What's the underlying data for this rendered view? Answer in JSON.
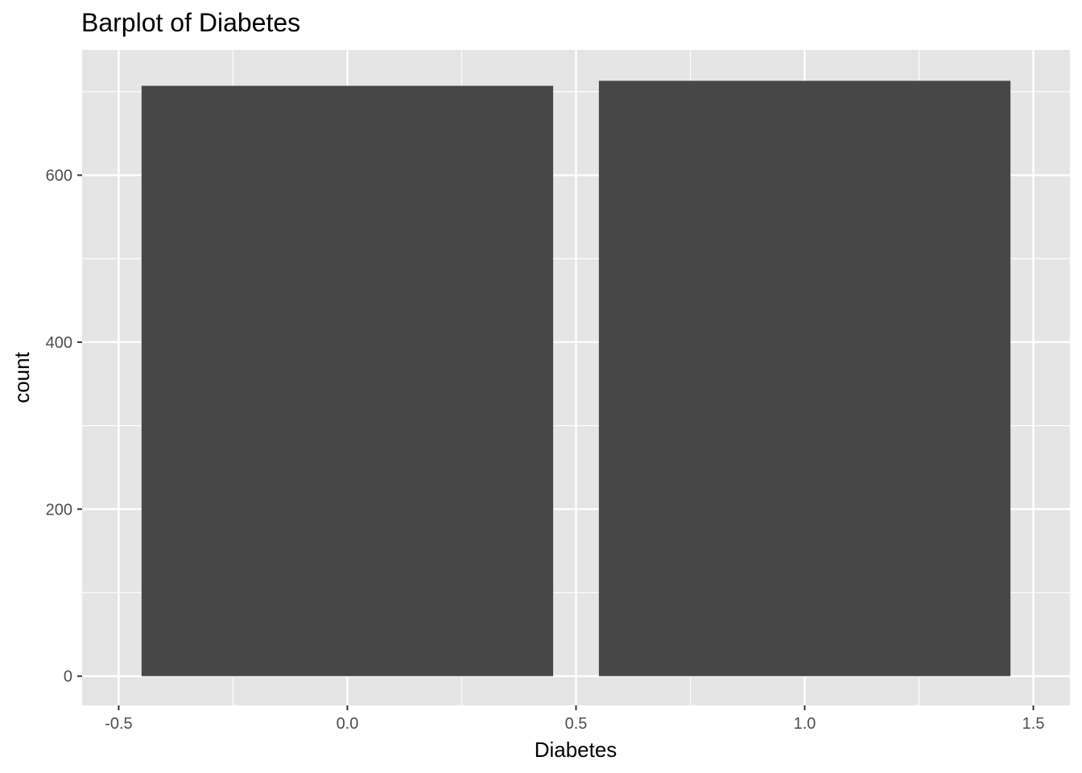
{
  "chart_data": {
    "type": "bar",
    "title": "Barplot of Diabetes",
    "xlabel": "Diabetes",
    "ylabel": "count",
    "x": [
      0,
      1
    ],
    "values": [
      707,
      713
    ],
    "bar_width": 0.9,
    "xlim": [
      -0.58,
      1.58
    ],
    "ylim": [
      -35,
      750
    ],
    "x_ticks": [
      -0.5,
      0.0,
      0.5,
      1.0,
      1.5
    ],
    "x_tick_labels": [
      "-0.5",
      "0.0",
      "0.5",
      "1.0",
      "1.5"
    ],
    "y_ticks": [
      0,
      200,
      400,
      600
    ],
    "y_tick_labels": [
      "0",
      "200",
      "400",
      "600"
    ],
    "grid": true,
    "colors": {
      "panel": "#e5e5e5",
      "grid": "#ffffff",
      "bar": "#474747",
      "tick_text": "#4d4d4d",
      "tick_mark": "#333333"
    }
  }
}
